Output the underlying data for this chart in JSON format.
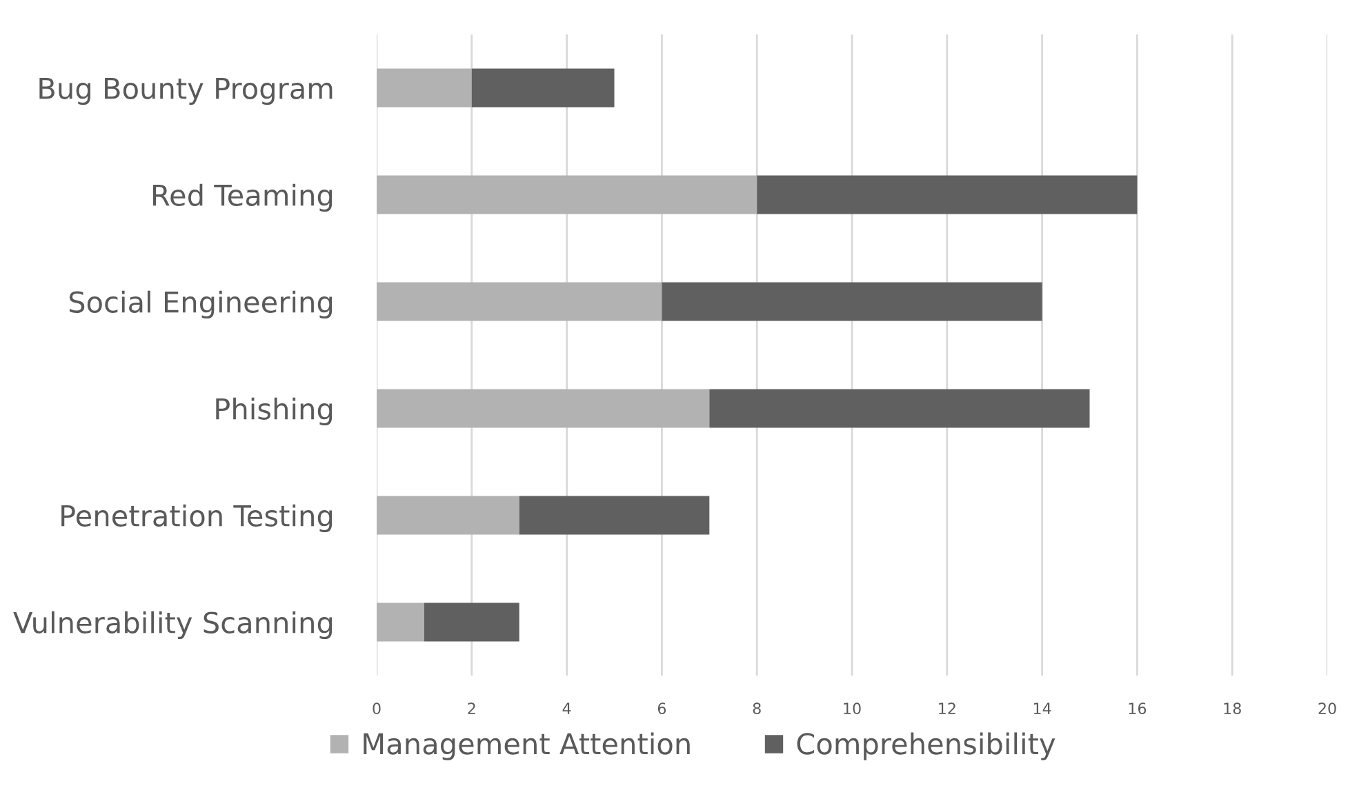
{
  "chart_data": {
    "type": "bar",
    "orientation": "horizontal",
    "stacked": true,
    "categories": [
      "Bug Bounty Program",
      "Red Teaming",
      "Social Engineering",
      "Phishing",
      "Penetration Testing",
      "Vulnerability Scanning"
    ],
    "series": [
      {
        "name": "Management Attention",
        "color": "#b2b2b2",
        "values": [
          2,
          8,
          6,
          7,
          3,
          1
        ]
      },
      {
        "name": "Comprehensibility",
        "color": "#606060",
        "values": [
          3,
          8,
          8,
          8,
          4,
          2
        ]
      }
    ],
    "xlim": [
      0,
      20
    ],
    "xticks": [
      0,
      2,
      4,
      6,
      8,
      10,
      12,
      14,
      16,
      18,
      20
    ],
    "grid": "x",
    "legend": "bottom"
  }
}
